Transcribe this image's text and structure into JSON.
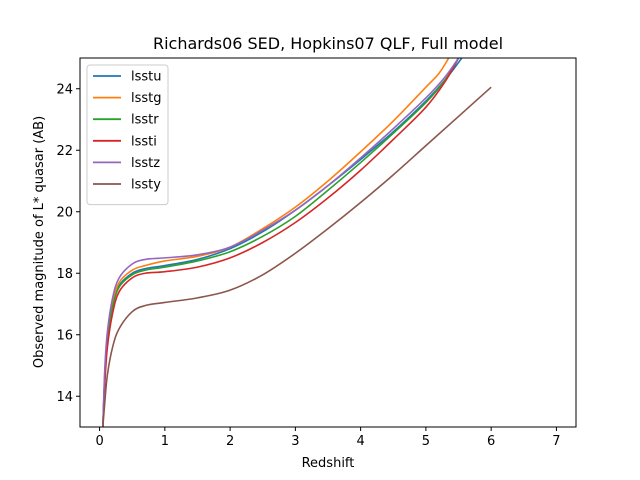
{
  "chart_data": {
    "type": "line",
    "title": "Richards06 SED, Hopkins07 QLF, Full model",
    "xlabel": "Redshift",
    "ylabel": "Observed magnitude of L* quasar (AB)",
    "xlim": [
      -0.3,
      7.3
    ],
    "ylim": [
      13,
      25
    ],
    "xticks": [
      0,
      1,
      2,
      3,
      4,
      5,
      6,
      7
    ],
    "yticks": [
      14,
      16,
      18,
      20,
      22,
      24
    ],
    "grid": false,
    "legend_position": "top-left",
    "series": [
      {
        "name": "lsstu",
        "color": "#1f77b4",
        "x": [
          0.05,
          0.08,
          0.12,
          0.2,
          0.3,
          0.5,
          0.7,
          1.0,
          1.5,
          2.0,
          2.5,
          3.0,
          3.5,
          4.0,
          4.5,
          5.0,
          5.3,
          5.55
        ],
        "y": [
          13.0,
          14.6,
          15.8,
          16.9,
          17.6,
          18.0,
          18.15,
          18.25,
          18.45,
          18.8,
          19.35,
          20.05,
          20.85,
          21.7,
          22.6,
          23.6,
          24.3,
          25.0
        ]
      },
      {
        "name": "lsstg",
        "color": "#ff7f0e",
        "x": [
          0.05,
          0.08,
          0.12,
          0.2,
          0.3,
          0.5,
          0.7,
          1.0,
          1.5,
          2.0,
          2.5,
          3.0,
          3.5,
          4.0,
          4.5,
          5.0,
          5.2,
          5.35
        ],
        "y": [
          13.0,
          14.7,
          15.9,
          17.0,
          17.7,
          18.1,
          18.25,
          18.4,
          18.55,
          18.85,
          19.45,
          20.15,
          21.0,
          21.95,
          22.95,
          24.05,
          24.5,
          25.0
        ]
      },
      {
        "name": "lsstr",
        "color": "#2ca02c",
        "x": [
          0.05,
          0.08,
          0.12,
          0.2,
          0.3,
          0.5,
          0.7,
          1.0,
          1.5,
          2.0,
          2.5,
          3.0,
          3.5,
          4.0,
          4.5,
          5.0,
          5.3,
          5.5
        ],
        "y": [
          13.0,
          14.6,
          15.8,
          16.9,
          17.55,
          17.95,
          18.1,
          18.2,
          18.4,
          18.7,
          19.2,
          19.85,
          20.7,
          21.6,
          22.55,
          23.55,
          24.3,
          25.0
        ]
      },
      {
        "name": "lssti",
        "color": "#d62728",
        "x": [
          0.05,
          0.08,
          0.12,
          0.2,
          0.3,
          0.5,
          0.7,
          1.0,
          1.5,
          2.0,
          2.5,
          3.0,
          3.5,
          4.0,
          4.5,
          5.0,
          5.3,
          5.5
        ],
        "y": [
          13.0,
          14.4,
          15.6,
          16.7,
          17.4,
          17.85,
          18.0,
          18.05,
          18.2,
          18.5,
          19.0,
          19.65,
          20.45,
          21.35,
          22.35,
          23.4,
          24.25,
          25.0
        ]
      },
      {
        "name": "lsstz",
        "color": "#9467bd",
        "x": [
          0.05,
          0.08,
          0.12,
          0.2,
          0.3,
          0.5,
          0.7,
          1.0,
          1.5,
          2.0,
          2.5,
          3.0,
          3.5,
          4.0,
          4.5,
          5.0,
          5.3,
          5.5
        ],
        "y": [
          13.0,
          14.9,
          16.1,
          17.2,
          17.85,
          18.3,
          18.45,
          18.5,
          18.6,
          18.85,
          19.4,
          20.05,
          20.85,
          21.75,
          22.7,
          23.7,
          24.4,
          25.0
        ]
      },
      {
        "name": "lssty",
        "color": "#8c564b",
        "x": [
          0.05,
          0.08,
          0.12,
          0.2,
          0.3,
          0.5,
          0.7,
          1.0,
          1.5,
          2.0,
          2.5,
          3.0,
          3.5,
          4.0,
          4.5,
          5.0,
          5.5,
          6.0
        ],
        "y": [
          13.0,
          13.8,
          14.7,
          15.6,
          16.2,
          16.75,
          16.95,
          17.05,
          17.2,
          17.45,
          17.95,
          18.65,
          19.45,
          20.3,
          21.2,
          22.15,
          23.1,
          24.05
        ]
      }
    ]
  }
}
